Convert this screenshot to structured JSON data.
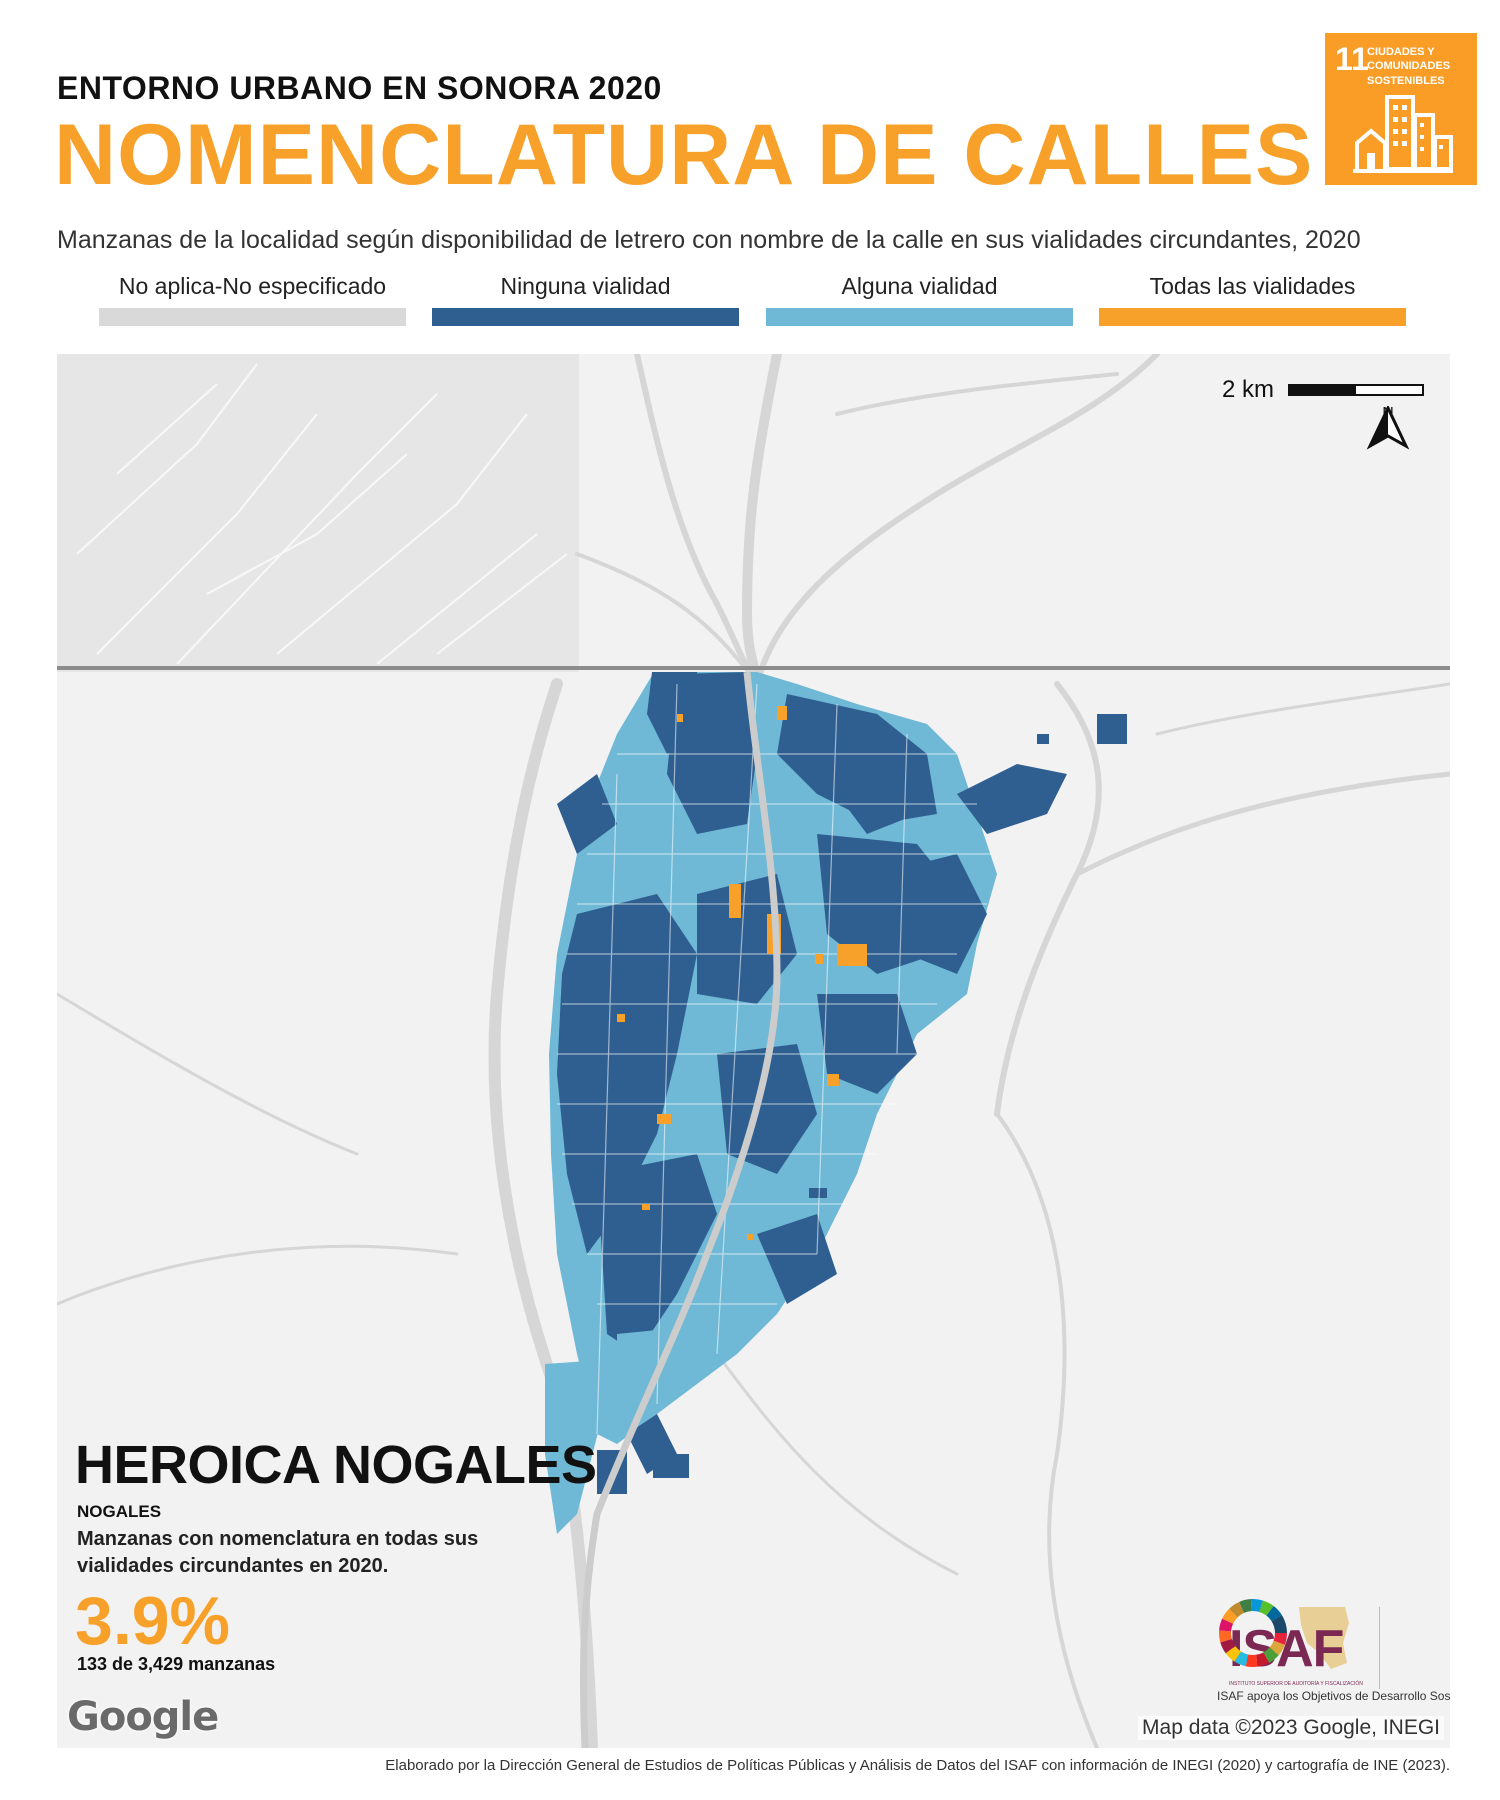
{
  "header": {
    "kicker": "ENTORNO URBANO EN SONORA 2020",
    "title": "NOMENCLATURA DE CALLES",
    "subtitle": "Manzanas de la localidad según disponibilidad de letrero con nombre de la calle en sus vialidades circundantes, 2020"
  },
  "sdg": {
    "number": "11",
    "label": "CIUDADES Y\nCOMUNIDADES\nSOSTENIBLES",
    "color": "#f99d26"
  },
  "legend": [
    {
      "label": "No aplica-No especificado",
      "color": "#d9d9d9"
    },
    {
      "label": "Ninguna vialidad",
      "color": "#2f5f91"
    },
    {
      "label": "Alguna vialidad",
      "color": "#6fb9d6"
    },
    {
      "label": "Todas las vialidades",
      "color": "#f7a12a"
    }
  ],
  "map": {
    "scale_label": "2 km",
    "north_label": "N",
    "city": "HEROICA NOGALES",
    "municipio": "NOGALES",
    "description": "Manzanas con nomenclatura en todas sus vialidades circundantes en 2020.",
    "percentage": "3.9%",
    "count": "133 de 3,429 manzanas",
    "google": "Google",
    "attribution": "Map data ©2023 Google, INEGI"
  },
  "isaf": {
    "logo": "ISAF",
    "small_text": "INSTITUTO SUPERIOR DE AUDITORÍA Y FISCALIZACIÓN",
    "caption": "ISAF apoya los Objetivos de Desarrollo Sostenible"
  },
  "footer": "Elaborado por la Dirección General de Estudios de Políticas Públicas y Análisis de Datos del ISAF con información de INEGI (2020) y cartografía de INE (2023)."
}
